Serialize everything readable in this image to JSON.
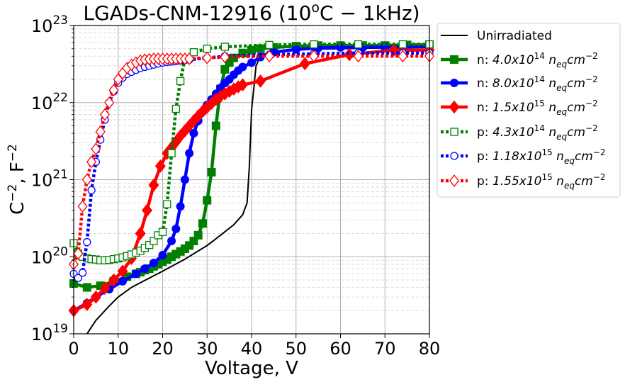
{
  "chart_data": {
    "type": "line",
    "title": "LGADs-CNM-12916 (10",
    "title_sup": "o",
    "title_tail": "C − 1kHz)",
    "xlabel": "Voltage, V",
    "ylabel": "C",
    "ylabel_sup": "−2",
    "ylabel_tail": ", F",
    "ylabel_sup2": "−2",
    "xlim": [
      0,
      80
    ],
    "ylim_log10": [
      19,
      23
    ],
    "y_scale": "log",
    "x_ticks": [
      0,
      10,
      20,
      30,
      40,
      50,
      60,
      70,
      80
    ],
    "x_tick_labels": [
      "0",
      "10",
      "20",
      "30",
      "40",
      "50",
      "60",
      "70",
      "80"
    ],
    "y_ticks_exp": [
      19,
      20,
      21,
      22,
      23
    ],
    "y_tick_base": "10",
    "y_tick_exps": [
      "19",
      "20",
      "21",
      "22",
      "23"
    ],
    "legend_position": "outside-right",
    "series": [
      {
        "name": "Unirradiated",
        "legend": {
          "prefix": "Unirradiated",
          "mant": "",
          "exp": "",
          "mid": "",
          "sub": "",
          "unit": "",
          "uexp": ""
        },
        "color": "#000000",
        "style": "solid",
        "marker": "none",
        "x": [
          3,
          5,
          8,
          10,
          13,
          15,
          20,
          25,
          30,
          33,
          36,
          38,
          39,
          39.5,
          40,
          40.5,
          41,
          42,
          45,
          50,
          60,
          70,
          80
        ],
        "y": [
          1e+19,
          1.5e+19,
          2.3e+19,
          3e+19,
          4e+19,
          4.6e+19,
          6.5e+19,
          9.3e+19,
          1.4e+20,
          1.9e+20,
          2.6e+20,
          3.5e+20,
          5e+20,
          1.5e+21,
          8e+21,
          1.5e+22,
          3e+22,
          4e+22,
          4.6e+22,
          4.9e+22,
          5e+22,
          5.1e+22,
          5.2e+22
        ]
      },
      {
        "name": "n: 4.0x10^14 n_eq cm^-2",
        "legend": {
          "prefix": "n: ",
          "mant": "4.0x10",
          "exp": "14",
          "mid": " n",
          "sub": "eq",
          "unit": "cm",
          "uexp": "−2"
        },
        "color": "#008000",
        "style": "solid",
        "marker": "square",
        "filled": true,
        "x": [
          0,
          3,
          6,
          9,
          12,
          14,
          15,
          16,
          17,
          18,
          19,
          20,
          21,
          22,
          23,
          24,
          25,
          26,
          27,
          28,
          29,
          30,
          31,
          32,
          33,
          34,
          35,
          36,
          38,
          40,
          42,
          45,
          50,
          55,
          60,
          65,
          70,
          75,
          80
        ],
        "y": [
          4.5e+19,
          4e+19,
          4.2e+19,
          4.8e+19,
          5.5e+19,
          6e+19,
          6.3e+19,
          6.7e+19,
          7e+19,
          7.5e+19,
          8e+19,
          8.6e+19,
          9.2e+19,
          1e+20,
          1.08e+20,
          1.17e+20,
          1.27e+20,
          1.4e+20,
          1.6e+20,
          1.9e+20,
          2.7e+20,
          5.4e+20,
          1.25e+21,
          5e+21,
          1.5e+22,
          2.7e+22,
          3.3e+22,
          3.8e+22,
          4.4e+22,
          4.8e+22,
          5e+22,
          5.2e+22,
          5.4e+22,
          5.5e+22,
          5.5e+22,
          5.5e+22,
          5.5e+22,
          5.6e+22,
          5.6e+22
        ]
      },
      {
        "name": "n: 8.0x10^14 n_eq cm^-2",
        "legend": {
          "prefix": "n: ",
          "mant": "8.0x10",
          "exp": "14",
          "mid": " n",
          "sub": "eq",
          "unit": "cm",
          "uexp": "−2"
        },
        "color": "#0000ff",
        "style": "solid",
        "marker": "circle",
        "filled": true,
        "x": [
          0,
          3,
          5,
          8,
          11,
          14,
          16,
          18,
          20,
          22,
          23,
          24,
          25,
          26,
          27,
          28,
          29,
          30,
          31,
          32,
          33,
          34,
          35,
          36,
          37,
          38,
          40,
          42,
          45,
          50,
          55,
          60,
          65,
          70,
          75,
          80
        ],
        "y": [
          2e+19,
          2.5e+19,
          3e+19,
          3.8e+19,
          4.8e+19,
          6e+19,
          7e+19,
          8.3e+19,
          1.05e+20,
          1.6e+20,
          2.3e+20,
          4.5e+20,
          1e+21,
          2.2e+21,
          4e+21,
          5.8e+21,
          7.6e+21,
          9.3e+21,
          1.1e+22,
          1.3e+22,
          1.55e+22,
          1.8e+22,
          2e+22,
          2.3e+22,
          2.6e+22,
          2.9e+22,
          3.3e+22,
          3.9e+22,
          4.5e+22,
          4.9e+22,
          5.1e+22,
          5.2e+22,
          5.2e+22,
          5.3e+22,
          5.3e+22,
          5.3e+22
        ]
      },
      {
        "name": "n: 1.5x10^15 n_eq cm^-2",
        "legend": {
          "prefix": "n: ",
          "mant": "1.5x10",
          "exp": "15",
          "mid": " n",
          "sub": "eq",
          "unit": "cm",
          "uexp": "−2"
        },
        "color": "#ff0000",
        "style": "solid",
        "marker": "diamond",
        "filled": true,
        "x": [
          0,
          3,
          5,
          7,
          9,
          11,
          13,
          15,
          16.5,
          18,
          19.5,
          21,
          22,
          23,
          24,
          25,
          26,
          27,
          28,
          29,
          30,
          31,
          32,
          33,
          34,
          35,
          36,
          37,
          38,
          42,
          52,
          62,
          72,
          80
        ],
        "y": [
          2e+19,
          2.4e+19,
          3e+19,
          3.9e+19,
          5e+19,
          6.5e+19,
          9.5e+19,
          2e+20,
          4e+20,
          8.5e+20,
          1.5e+21,
          2.2e+21,
          2.6e+21,
          3.1e+21,
          3.7e+21,
          4.3e+21,
          5e+21,
          5.8e+21,
          6.7e+21,
          7.7e+21,
          8.7e+21,
          9.8e+21,
          1.1e+22,
          1.2e+22,
          1.3e+22,
          1.4e+22,
          1.5e+22,
          1.6e+22,
          1.7e+22,
          1.9e+22,
          3.2e+22,
          4.2e+22,
          4.8e+22,
          4.8e+22
        ]
      },
      {
        "name": "p: 4.3x10^14 n_eq cm^-2",
        "legend": {
          "prefix": "p: ",
          "mant": "4.3x10",
          "exp": "14",
          "mid": " n",
          "sub": "eq",
          "unit": "cm",
          "uexp": "−2"
        },
        "color": "#008000",
        "style": "dotted",
        "marker": "square",
        "filled": false,
        "x": [
          0,
          1,
          2,
          3,
          4,
          5,
          6,
          7,
          8,
          9,
          10,
          11,
          12,
          13,
          14,
          15,
          16,
          17,
          18,
          19,
          20,
          21,
          22,
          23,
          24,
          25,
          27,
          30,
          34,
          44,
          54,
          64,
          74,
          80
        ],
        "y": [
          1.5e+20,
          1.1e+20,
          1e+20,
          9.5e+19,
          9.3e+19,
          9.2e+19,
          9e+19,
          9e+19,
          9.1e+19,
          9.3e+19,
          9.5e+19,
          9.8e+19,
          1.02e+20,
          1.07e+20,
          1.13e+20,
          1.2e+20,
          1.3e+20,
          1.42e+20,
          1.6e+20,
          1.9e+20,
          2.1e+20,
          4.8e+20,
          2.2e+21,
          8.3e+21,
          1.9e+22,
          3.7e+22,
          4.5e+22,
          5e+22,
          5.3e+22,
          5.6e+22,
          5.7e+22,
          5.7e+22,
          5.7e+22,
          5.7e+22
        ]
      },
      {
        "name": "p: 1.18x10^15 n_eq cm^-2",
        "legend": {
          "prefix": "p: ",
          "mant": "1.18x10",
          "exp": "15",
          "mid": " n",
          "sub": "eq",
          "unit": "cm",
          "uexp": "−2"
        },
        "color": "#0000ff",
        "style": "dotted",
        "marker": "circle",
        "filled": false,
        "x": [
          0,
          1,
          2,
          3,
          4,
          5,
          6,
          7,
          8,
          9,
          10,
          11,
          12,
          13,
          14,
          15,
          16,
          17,
          18,
          19,
          20,
          21,
          22,
          23,
          24,
          25,
          26,
          30,
          34,
          44,
          54,
          64,
          74,
          80
        ],
        "y": [
          6e+19,
          5.3e+19,
          6.2e+19,
          1.55e+20,
          7.3e+20,
          1.7e+21,
          3.3e+21,
          6e+21,
          1e+22,
          1.4e+22,
          1.8e+22,
          2.1e+22,
          2.35e+22,
          2.5e+22,
          2.65e+22,
          2.8e+22,
          2.9e+22,
          3e+22,
          3.1e+22,
          3.2e+22,
          3.3e+22,
          3.35e+22,
          3.4e+22,
          3.45e+22,
          3.5e+22,
          3.55e+22,
          3.6e+22,
          3.8e+22,
          4e+22,
          4.2e+22,
          4.3e+22,
          4.4e+22,
          4.4e+22,
          4.4e+22
        ]
      },
      {
        "name": "p: 1.55x10^15 n_eq cm^-2",
        "legend": {
          "prefix": "p: ",
          "mant": "1.55x10",
          "exp": "15",
          "mid": " n",
          "sub": "eq",
          "unit": "cm",
          "uexp": "−2"
        },
        "color": "#ff0000",
        "style": "dotted",
        "marker": "diamond",
        "filled": false,
        "x": [
          0,
          1,
          2,
          3,
          4,
          5,
          6,
          7,
          8,
          9,
          10,
          11,
          12,
          13,
          14,
          15,
          16,
          17,
          18,
          19,
          20,
          21,
          22,
          23,
          24,
          25,
          26,
          30,
          34,
          44,
          54,
          64,
          74,
          80
        ],
        "y": [
          8e+19,
          1.1e+20,
          4.5e+20,
          1e+21,
          1.7e+21,
          2.5e+21,
          4.2e+21,
          7e+21,
          1e+22,
          1.45e+22,
          2e+22,
          2.4e+22,
          2.8e+22,
          3.1e+22,
          3.3e+22,
          3.5e+22,
          3.6e+22,
          3.65e+22,
          3.7e+22,
          3.7e+22,
          3.7e+22,
          3.7e+22,
          3.7e+22,
          3.7e+22,
          3.7e+22,
          3.7e+22,
          3.7e+22,
          3.8e+22,
          3.9e+22,
          4e+22,
          4e+22,
          4e+22,
          4e+22,
          4e+22
        ]
      }
    ]
  }
}
